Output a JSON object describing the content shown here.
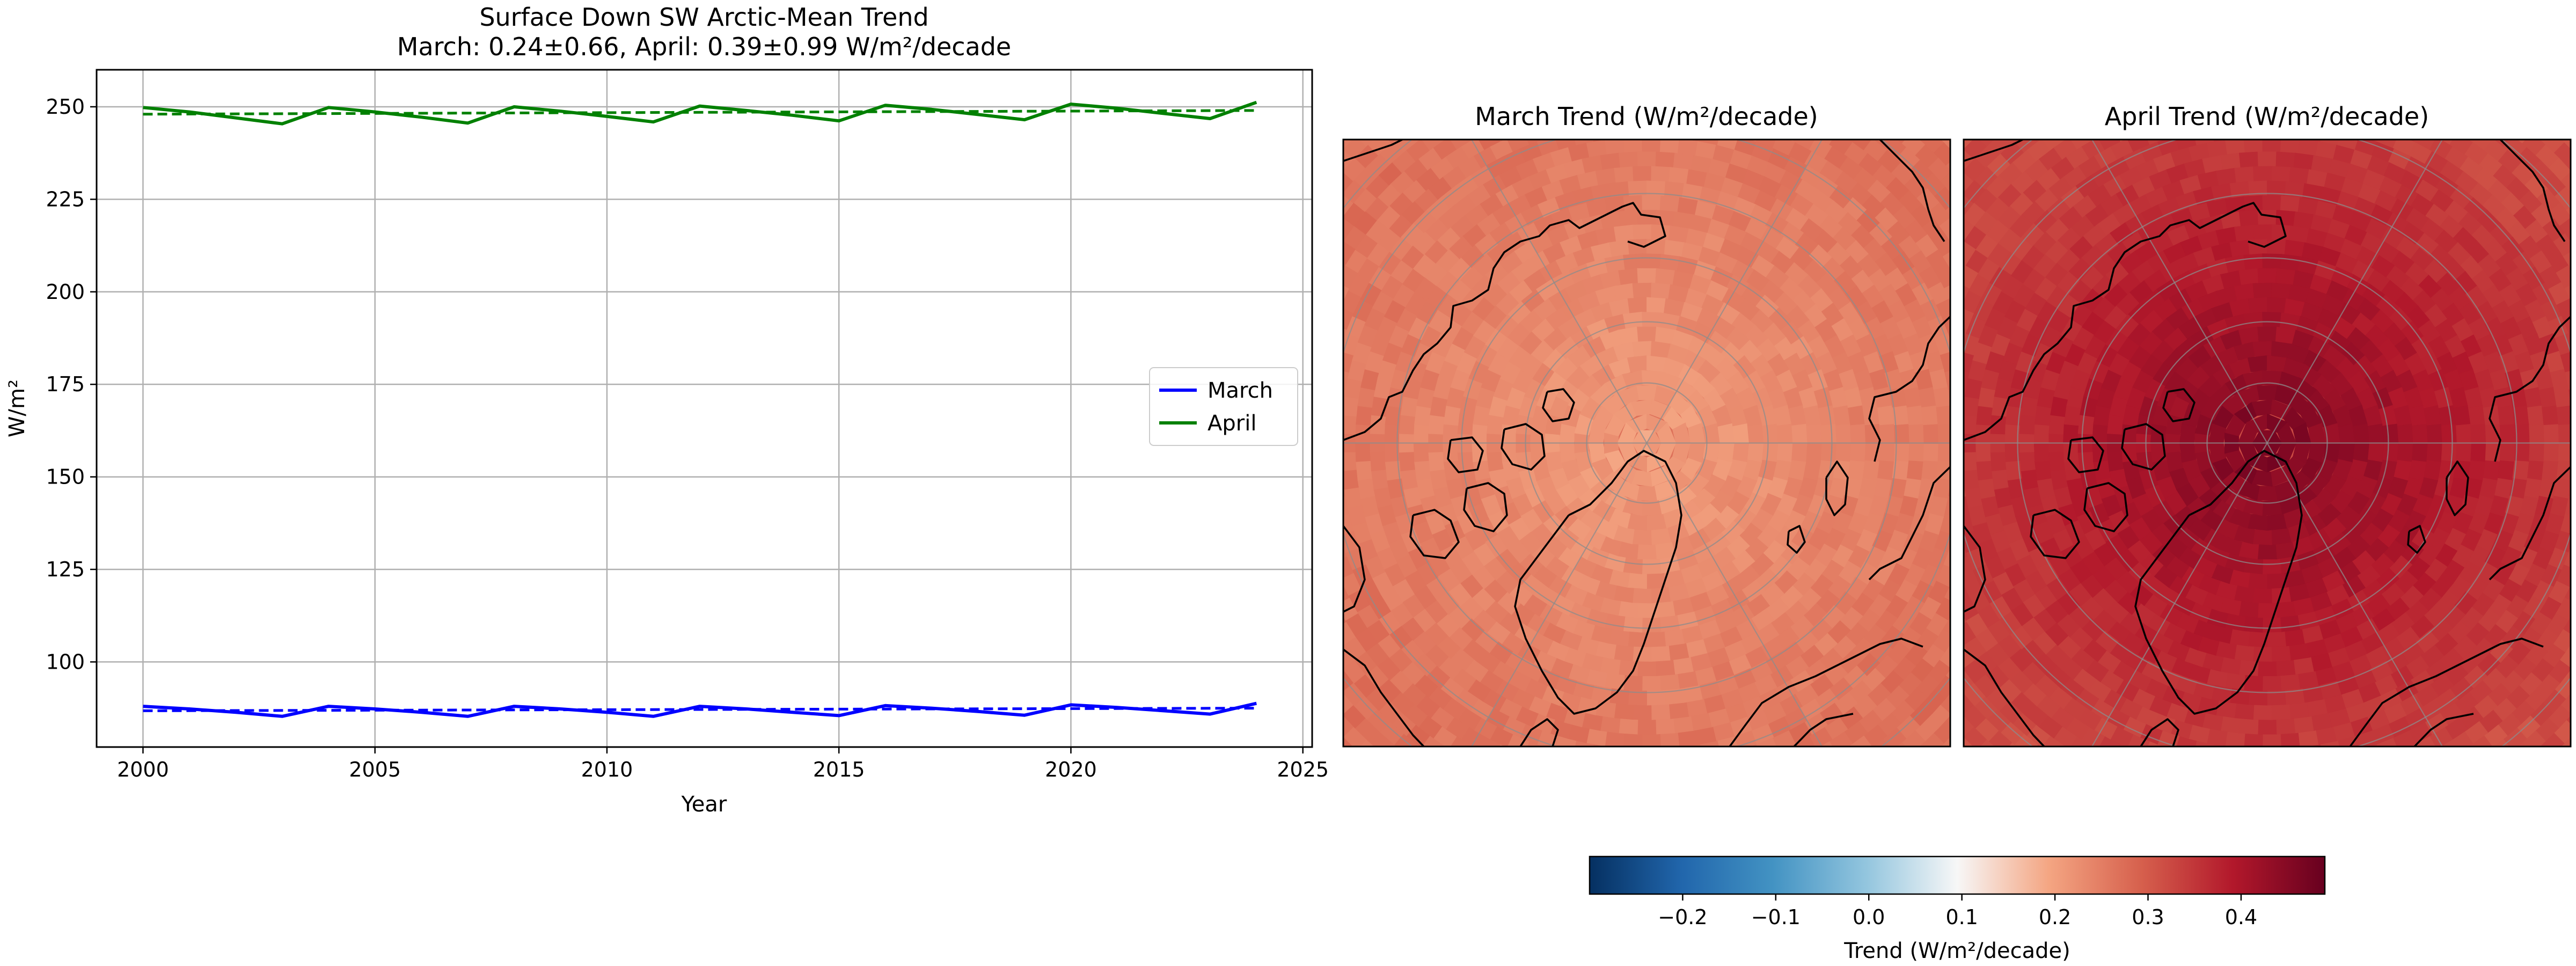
{
  "chart_data": [
    {
      "type": "line",
      "title": "Surface Down SW Arctic-Mean Trend",
      "subtitle": "March: 0.24±0.66, April: 0.39±0.99 W/m²/decade",
      "xlabel": "Year",
      "ylabel": "W/m²",
      "xlim": [
        1999,
        2025.2
      ],
      "ylim": [
        77,
        260
      ],
      "xticks": [
        2000,
        2005,
        2010,
        2015,
        2020,
        2025
      ],
      "yticks": [
        100,
        125,
        150,
        175,
        200,
        225,
        250
      ],
      "grid": true,
      "legend": {
        "placement": "center-right",
        "entries": [
          "March",
          "April"
        ]
      },
      "x": [
        2000,
        2001,
        2002,
        2003,
        2004,
        2005,
        2006,
        2007,
        2008,
        2009,
        2010,
        2011,
        2012,
        2013,
        2014,
        2015,
        2016,
        2017,
        2018,
        2019,
        2020,
        2021,
        2022,
        2023,
        2024
      ],
      "series": [
        {
          "name": "March",
          "color": "#0000ff",
          "values": [
            88.0,
            87.3,
            86.4,
            85.3,
            88.0,
            87.3,
            86.4,
            85.3,
            88.0,
            87.3,
            86.4,
            85.3,
            88.0,
            87.3,
            86.4,
            85.5,
            88.2,
            87.5,
            86.6,
            85.6,
            88.4,
            87.7,
            86.8,
            85.9,
            88.8
          ],
          "trend": [
            86.8,
            87.5
          ]
        },
        {
          "name": "April",
          "color": "#008000",
          "values": [
            249.8,
            248.6,
            247.0,
            245.4,
            249.8,
            248.6,
            247.2,
            245.6,
            250.0,
            248.8,
            247.4,
            245.9,
            250.2,
            249.0,
            247.7,
            246.2,
            250.4,
            249.3,
            247.9,
            246.5,
            250.7,
            249.6,
            248.2,
            246.8,
            251.2
          ],
          "trend": [
            248.0,
            249.0
          ]
        }
      ]
    },
    {
      "type": "heatmap",
      "title": "March Trend (W/m²/decade)",
      "projection": "north-polar-stereographic",
      "center_value": 0.2,
      "edge_value": 0.27
    },
    {
      "type": "heatmap",
      "title": "April Trend (W/m²/decade)",
      "projection": "north-polar-stereographic",
      "center_value": 0.47,
      "edge_value": 0.32
    }
  ],
  "colorbar": {
    "label": "Trend (W/m²/decade)",
    "range": [
      -0.3,
      0.49
    ],
    "ticks": [
      "−0.2",
      "−0.1",
      "0.0",
      "0.1",
      "0.2",
      "0.3",
      "0.4"
    ],
    "tick_values": [
      -0.2,
      -0.1,
      0.0,
      0.1,
      0.2,
      0.3,
      0.4
    ]
  }
}
